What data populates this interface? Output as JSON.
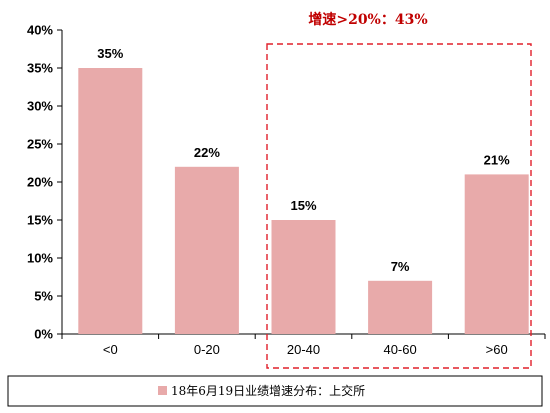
{
  "chart_data": {
    "type": "bar",
    "categories": [
      "<0",
      "0-20",
      "20-40",
      "40-60",
      ">60"
    ],
    "values": [
      35,
      22,
      15,
      7,
      21
    ],
    "value_labels": [
      "35%",
      "22%",
      "15%",
      "7%",
      "21%"
    ],
    "ylim": [
      0,
      40
    ],
    "yticks": [
      0,
      5,
      10,
      15,
      20,
      25,
      30,
      35,
      40
    ],
    "ytick_labels": [
      "0%",
      "5%",
      "10%",
      "15%",
      "20%",
      "25%",
      "30%",
      "35%",
      "40%"
    ],
    "bar_color": "#e8aaaa",
    "grid": false,
    "legend": {
      "placement": "bottom",
      "entries": [
        "18年6月19日业绩增速分布：上交所"
      ]
    },
    "annotation": {
      "text": "增速>20%：43%",
      "color": "#c00000",
      "highlight_categories": [
        "20-40",
        "40-60",
        ">60"
      ],
      "style": "dashed-box"
    }
  }
}
